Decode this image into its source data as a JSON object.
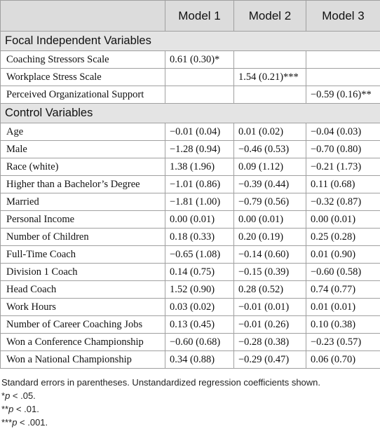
{
  "header": {
    "columns": [
      "Model 1",
      "Model 2",
      "Model 3"
    ]
  },
  "sections": [
    {
      "title": "Focal Independent Variables",
      "rows": [
        {
          "label": "Coaching Stressors Scale",
          "values": [
            "0.61 (0.30)*",
            null,
            null
          ]
        },
        {
          "label": "Workplace Stress Scale",
          "values": [
            null,
            "1.54 (0.21)***",
            null
          ]
        },
        {
          "label": "Perceived Organizational Support",
          "values": [
            null,
            null,
            "−0.59 (0.16)**"
          ]
        }
      ]
    },
    {
      "title": "Control Variables",
      "rows": [
        {
          "label": "Age",
          "values": [
            "−0.01 (0.04)",
            "0.01 (0.02)",
            "−0.04 (0.03)"
          ]
        },
        {
          "label": "Male",
          "values": [
            "−1.28 (0.94)",
            "−0.46 (0.53)",
            "−0.70 (0.80)"
          ]
        },
        {
          "label": "Race (white)",
          "values": [
            "1.38 (1.96)",
            "0.09 (1.12)",
            "−0.21 (1.73)"
          ]
        },
        {
          "label": "Higher than a Bachelor’s Degree",
          "values": [
            "−1.01 (0.86)",
            "−0.39 (0.44)",
            "0.11 (0.68)"
          ]
        },
        {
          "label": "Married",
          "values": [
            "−1.81 (1.00)",
            "−0.79 (0.56)",
            "−0.32 (0.87)"
          ]
        },
        {
          "label": "Personal Income",
          "values": [
            "0.00 (0.01)",
            "0.00 (0.01)",
            "0.00 (0.01)"
          ]
        },
        {
          "label": "Number of Children",
          "values": [
            "0.18 (0.33)",
            "0.20 (0.19)",
            "0.25 (0.28)"
          ]
        },
        {
          "label": "Full-Time Coach",
          "values": [
            "−0.65 (1.08)",
            "−0.14 (0.60)",
            "0.01 (0.90)"
          ]
        },
        {
          "label": "Division 1 Coach",
          "values": [
            "0.14 (0.75)",
            "−0.15 (0.39)",
            "−0.60 (0.58)"
          ]
        },
        {
          "label": "Head Coach",
          "values": [
            "1.52 (0.90)",
            "0.28 (0.52)",
            "0.74 (0.77)"
          ]
        },
        {
          "label": "Work Hours",
          "values": [
            "0.03 (0.02)",
            "−0.01 (0.01)",
            "0.01 (0.01)"
          ]
        },
        {
          "label": "Number of Career Coaching Jobs",
          "values": [
            "0.13 (0.45)",
            "−0.01 (0.26)",
            "0.10 (0.38)"
          ]
        },
        {
          "label": "Won a Conference Championship",
          "values": [
            "−0.60 (0.68)",
            "−0.28 (0.38)",
            "−0.23 (0.57)"
          ]
        },
        {
          "label": "Won a National Championship",
          "values": [
            "0.34 (0.88)",
            "−0.29 (0.47)",
            "0.06 (0.70)"
          ]
        }
      ]
    }
  ],
  "footnotes": {
    "note": "Standard errors in parentheses. Unstandardized regression coefficients shown.",
    "significance": [
      {
        "prefix": "*",
        "italic": "p",
        "suffix": " < .05."
      },
      {
        "prefix": "**",
        "italic": "p",
        "suffix": " < .01."
      },
      {
        "prefix": "***",
        "italic": "p",
        "suffix": " < .001."
      }
    ]
  }
}
